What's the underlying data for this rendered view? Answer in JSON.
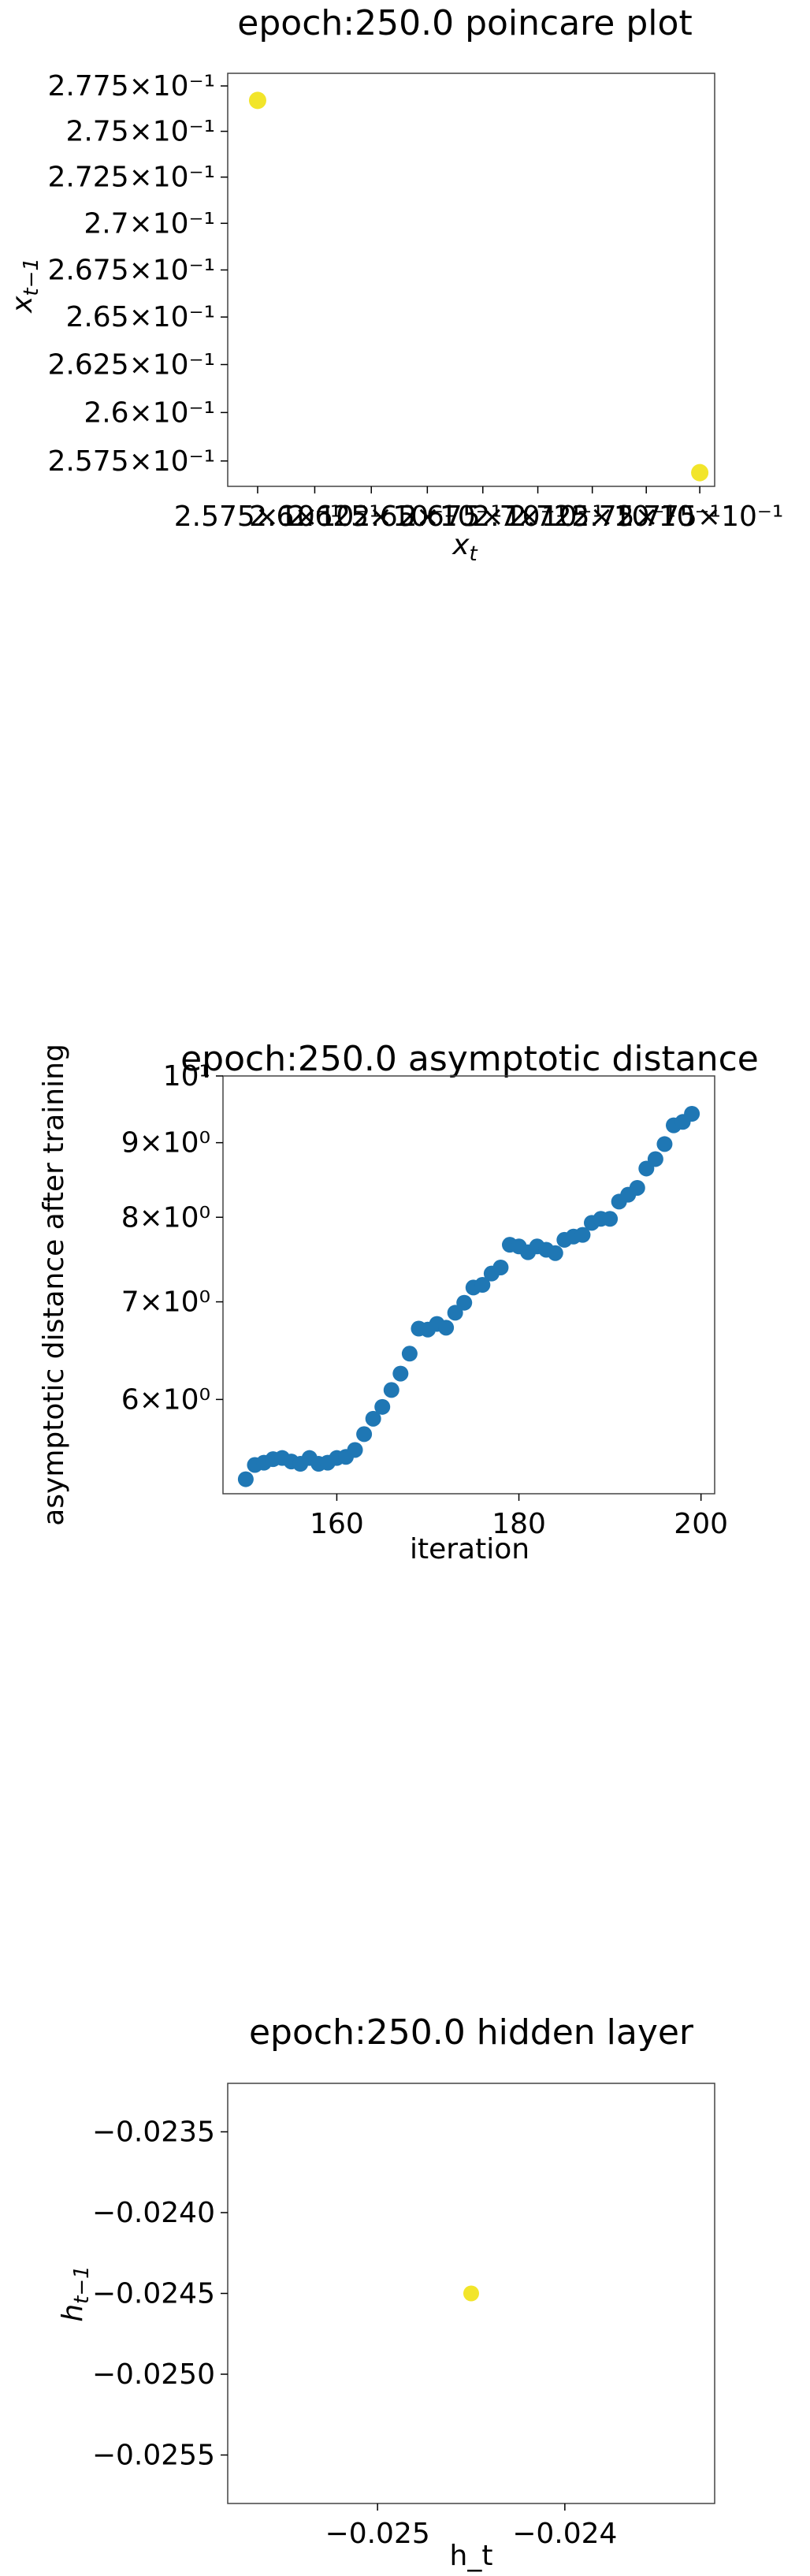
{
  "chart_data": [
    {
      "type": "scatter",
      "title": "epoch:250.0 poincare plot",
      "xlabel": "x",
      "xlabel_sub": "t",
      "ylabel": "x",
      "ylabel_sub": "t−1",
      "xscale": "log",
      "yscale": "log",
      "xlim": [
        0.2562,
        0.2782
      ],
      "ylim": [
        0.2562,
        0.2782
      ],
      "xticks": [
        {
          "value": 0.2575,
          "label": "2.575×10⁻¹"
        },
        {
          "value": 0.26,
          "label": "2.6×10⁻¹"
        },
        {
          "value": 0.2625,
          "label": "2.625×10⁻¹"
        },
        {
          "value": 0.265,
          "label": "2.65×10⁻¹"
        },
        {
          "value": 0.2675,
          "label": "2.675×10⁻¹"
        },
        {
          "value": 0.27,
          "label": "2.7×10⁻¹"
        },
        {
          "value": 0.2725,
          "label": "2.725×10⁻¹"
        },
        {
          "value": 0.275,
          "label": "2.75×10⁻¹"
        },
        {
          "value": 0.2775,
          "label": "2.775×10⁻¹"
        }
      ],
      "yticks": [
        {
          "value": 0.2575,
          "label": "2.575×10⁻¹"
        },
        {
          "value": 0.26,
          "label": "2.6×10⁻¹"
        },
        {
          "value": 0.2625,
          "label": "2.625×10⁻¹"
        },
        {
          "value": 0.265,
          "label": "2.65×10⁻¹"
        },
        {
          "value": 0.2675,
          "label": "2.675×10⁻¹"
        },
        {
          "value": 0.27,
          "label": "2.7×10⁻¹"
        },
        {
          "value": 0.2725,
          "label": "2.725×10⁻¹"
        },
        {
          "value": 0.275,
          "label": "2.75×10⁻¹"
        },
        {
          "value": 0.2775,
          "label": "2.775×10⁻¹"
        }
      ],
      "points": [
        {
          "x": 0.2575,
          "y": 0.2767
        },
        {
          "x": 0.2775,
          "y": 0.2569
        }
      ],
      "point_color": "#f2e52a",
      "grid": false
    },
    {
      "type": "scatter",
      "title": "epoch:250.0 asymptotic distance",
      "xlabel": "iteration",
      "ylabel": "asymptotic distance after training",
      "xscale": "linear",
      "yscale": "log",
      "xlim": [
        147.5,
        201.5
      ],
      "ylim": [
        5.17,
        10.0
      ],
      "xticks": [
        {
          "value": 160,
          "label": "160"
        },
        {
          "value": 180,
          "label": "180"
        },
        {
          "value": 200,
          "label": "200"
        }
      ],
      "yticks": [
        {
          "value": 6,
          "label": "6×10⁰"
        },
        {
          "value": 7,
          "label": "7×10⁰"
        },
        {
          "value": 8,
          "label": "8×10⁰"
        },
        {
          "value": 9,
          "label": "9×10⁰"
        },
        {
          "value": 10,
          "label": "10¹"
        }
      ],
      "x": [
        150,
        151,
        152,
        153,
        154,
        155,
        156,
        157,
        158,
        159,
        160,
        161,
        162,
        163,
        164,
        165,
        166,
        167,
        168,
        169,
        170,
        171,
        172,
        173,
        174,
        175,
        176,
        177,
        178,
        179,
        180,
        181,
        182,
        183,
        184,
        185,
        186,
        187,
        188,
        189,
        190,
        191,
        192,
        193,
        194,
        195,
        196,
        197,
        198,
        199
      ],
      "values": [
        5.29,
        5.41,
        5.43,
        5.46,
        5.47,
        5.44,
        5.42,
        5.47,
        5.42,
        5.43,
        5.47,
        5.48,
        5.54,
        5.68,
        5.82,
        5.93,
        6.09,
        6.25,
        6.45,
        6.71,
        6.7,
        6.76,
        6.72,
        6.88,
        6.99,
        7.16,
        7.19,
        7.32,
        7.39,
        7.66,
        7.64,
        7.57,
        7.64,
        7.6,
        7.56,
        7.72,
        7.76,
        7.78,
        7.93,
        7.98,
        7.98,
        8.2,
        8.29,
        8.38,
        8.64,
        8.77,
        8.98,
        9.25,
        9.3,
        9.42
      ],
      "point_color": "#1f77b4",
      "grid": false
    },
    {
      "type": "scatter",
      "title": "epoch:250.0 hidden layer",
      "xlabel": "h_t",
      "ylabel": "h",
      "ylabel_sub": "t−1",
      "xscale": "linear",
      "yscale": "linear",
      "xlim": [
        -0.0258,
        -0.0232
      ],
      "ylim": [
        -0.0258,
        -0.0232
      ],
      "xticks": [
        {
          "value": -0.025,
          "label": "−0.025"
        },
        {
          "value": -0.024,
          "label": "−0.024"
        }
      ],
      "yticks": [
        {
          "value": -0.0235,
          "label": "−0.0235"
        },
        {
          "value": -0.024,
          "label": "−0.0240"
        },
        {
          "value": -0.0245,
          "label": "−0.0245"
        },
        {
          "value": -0.025,
          "label": "−0.0250"
        },
        {
          "value": -0.0255,
          "label": "−0.0255"
        }
      ],
      "points": [
        {
          "x": -0.0245,
          "y": -0.0245
        }
      ],
      "point_color": "#f2e52a",
      "grid": false
    }
  ]
}
